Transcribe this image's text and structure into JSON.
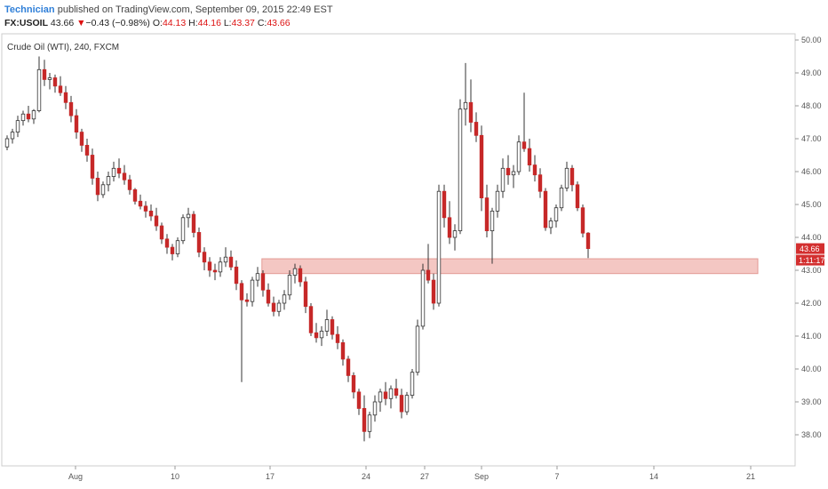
{
  "header": {
    "author": "Technician",
    "published_text": " published on TradingView.com, September 09, 2015 22:49 EST",
    "symbol": "FX:USOIL",
    "last": "43.66",
    "arrow": "▼",
    "change": "−0.43 (−0.98%)",
    "o_label": "O:",
    "o_val": "44.13",
    "h_label": "H:",
    "h_val": "44.16",
    "l_label": "L:",
    "l_val": "43.37",
    "c_label": "C:",
    "c_val": "43.66"
  },
  "colors": {
    "up": "#ffffff",
    "down": "#c62828",
    "wick": "#333333",
    "zone_fill": "#f4c7c3",
    "zone_stroke": "#e39a94",
    "price_badge": "#d32f2f",
    "axis": "#cccccc"
  },
  "chart_data": {
    "type": "candlestick",
    "title": "Crude Oil (WTI), 240, FXCM",
    "y_ticks": [
      "38.00",
      "39.00",
      "40.00",
      "41.00",
      "42.00",
      "43.00",
      "44.00",
      "45.00",
      "46.00",
      "47.00",
      "48.00",
      "49.00",
      "50.00"
    ],
    "ylim": [
      37.0,
      50.0
    ],
    "x_ticks": [
      "Aug",
      "10",
      "17",
      "24",
      "27",
      "Sep",
      "7",
      "14",
      "21"
    ],
    "last_price_label": "43.66",
    "countdown_label": "1:11:17",
    "support_zone": {
      "low": 42.9,
      "high": 43.35
    },
    "candles": [
      [
        46.75,
        47.1,
        46.65,
        47.0
      ],
      [
        47.0,
        47.3,
        46.85,
        47.2
      ],
      [
        47.2,
        47.7,
        47.05,
        47.55
      ],
      [
        47.55,
        47.85,
        47.4,
        47.75
      ],
      [
        47.75,
        48.0,
        47.5,
        47.6
      ],
      [
        47.6,
        47.9,
        47.45,
        47.85
      ],
      [
        47.85,
        49.5,
        47.8,
        49.1
      ],
      [
        49.1,
        49.4,
        48.6,
        48.8
      ],
      [
        48.8,
        49.0,
        48.5,
        48.85
      ],
      [
        48.85,
        48.95,
        48.4,
        48.6
      ],
      [
        48.6,
        48.9,
        48.3,
        48.4
      ],
      [
        48.4,
        48.6,
        47.9,
        48.1
      ],
      [
        48.1,
        48.3,
        47.5,
        47.7
      ],
      [
        47.7,
        47.9,
        47.0,
        47.2
      ],
      [
        47.2,
        47.3,
        46.6,
        46.8
      ],
      [
        46.8,
        47.0,
        46.3,
        46.5
      ],
      [
        46.5,
        46.7,
        45.6,
        45.8
      ],
      [
        45.8,
        46.0,
        45.1,
        45.3
      ],
      [
        45.3,
        45.7,
        45.2,
        45.6
      ],
      [
        45.6,
        46.0,
        45.4,
        45.85
      ],
      [
        45.85,
        46.3,
        45.7,
        46.1
      ],
      [
        46.1,
        46.4,
        45.8,
        45.95
      ],
      [
        45.95,
        46.2,
        45.6,
        45.75
      ],
      [
        45.75,
        45.9,
        45.3,
        45.45
      ],
      [
        45.45,
        45.5,
        45.0,
        45.1
      ],
      [
        45.1,
        45.3,
        44.85,
        44.95
      ],
      [
        44.95,
        45.1,
        44.6,
        44.8
      ],
      [
        44.8,
        45.0,
        44.5,
        44.65
      ],
      [
        44.65,
        44.9,
        44.2,
        44.35
      ],
      [
        44.35,
        44.45,
        43.8,
        43.95
      ],
      [
        43.95,
        44.1,
        43.5,
        43.7
      ],
      [
        43.7,
        43.8,
        43.3,
        43.5
      ],
      [
        43.5,
        44.0,
        43.4,
        43.9
      ],
      [
        43.9,
        44.7,
        43.8,
        44.6
      ],
      [
        44.6,
        44.9,
        44.3,
        44.7
      ],
      [
        44.7,
        44.8,
        44.0,
        44.15
      ],
      [
        44.15,
        44.3,
        43.4,
        43.55
      ],
      [
        43.55,
        43.7,
        43.0,
        43.25
      ],
      [
        43.25,
        43.4,
        42.8,
        43.0
      ],
      [
        43.0,
        43.2,
        42.7,
        42.95
      ],
      [
        42.95,
        43.4,
        42.8,
        43.25
      ],
      [
        43.25,
        43.7,
        43.1,
        43.4
      ],
      [
        43.4,
        43.6,
        43.0,
        43.1
      ],
      [
        43.1,
        43.3,
        42.4,
        42.6
      ],
      [
        42.6,
        42.7,
        39.6,
        42.1
      ],
      [
        42.1,
        42.3,
        41.9,
        42.05
      ],
      [
        42.05,
        42.8,
        41.9,
        42.7
      ],
      [
        42.7,
        43.1,
        42.5,
        42.9
      ],
      [
        42.9,
        43.0,
        42.2,
        42.4
      ],
      [
        42.4,
        42.6,
        41.9,
        42.0
      ],
      [
        42.0,
        42.2,
        41.6,
        41.75
      ],
      [
        41.75,
        42.1,
        41.6,
        42.0
      ],
      [
        42.0,
        42.4,
        41.8,
        42.25
      ],
      [
        42.25,
        43.0,
        42.1,
        42.85
      ],
      [
        42.85,
        43.2,
        42.6,
        43.05
      ],
      [
        43.05,
        43.15,
        42.5,
        42.65
      ],
      [
        42.65,
        42.8,
        41.7,
        41.9
      ],
      [
        41.9,
        42.0,
        41.0,
        41.1
      ],
      [
        41.1,
        41.4,
        40.8,
        40.95
      ],
      [
        40.95,
        41.3,
        40.7,
        41.15
      ],
      [
        41.15,
        41.8,
        41.0,
        41.5
      ],
      [
        41.5,
        41.6,
        40.9,
        41.05
      ],
      [
        41.05,
        41.3,
        40.6,
        40.8
      ],
      [
        40.8,
        40.9,
        40.1,
        40.3
      ],
      [
        40.3,
        40.4,
        39.6,
        39.8
      ],
      [
        39.8,
        39.9,
        39.1,
        39.3
      ],
      [
        39.3,
        39.4,
        38.6,
        38.8
      ],
      [
        38.8,
        39.2,
        37.8,
        38.1
      ],
      [
        38.1,
        38.7,
        37.9,
        38.6
      ],
      [
        38.6,
        39.2,
        38.4,
        39.0
      ],
      [
        39.0,
        39.4,
        38.7,
        39.3
      ],
      [
        39.3,
        39.6,
        38.9,
        39.1
      ],
      [
        39.1,
        39.5,
        38.8,
        39.4
      ],
      [
        39.4,
        39.7,
        39.1,
        39.2
      ],
      [
        39.2,
        39.4,
        38.5,
        38.7
      ],
      [
        38.7,
        39.3,
        38.6,
        39.2
      ],
      [
        39.2,
        40.0,
        39.1,
        39.9
      ],
      [
        39.9,
        41.5,
        39.8,
        41.3
      ],
      [
        41.3,
        43.2,
        41.2,
        43.0
      ],
      [
        43.0,
        43.8,
        42.6,
        42.7
      ],
      [
        42.7,
        42.9,
        41.8,
        42.0
      ],
      [
        42.0,
        45.6,
        41.9,
        45.4
      ],
      [
        45.4,
        45.6,
        44.3,
        44.6
      ],
      [
        44.6,
        45.1,
        43.8,
        44.0
      ],
      [
        44.0,
        44.4,
        43.6,
        44.2
      ],
      [
        44.2,
        48.2,
        44.1,
        47.9
      ],
      [
        47.9,
        49.3,
        47.4,
        48.1
      ],
      [
        48.1,
        48.8,
        47.2,
        47.5
      ],
      [
        47.5,
        47.8,
        46.9,
        47.1
      ],
      [
        47.1,
        47.4,
        44.8,
        45.2
      ],
      [
        45.2,
        45.6,
        44.0,
        44.2
      ],
      [
        44.2,
        44.9,
        43.2,
        44.8
      ],
      [
        44.8,
        45.6,
        44.6,
        45.4
      ],
      [
        45.4,
        46.4,
        45.2,
        46.1
      ],
      [
        46.1,
        46.5,
        45.6,
        45.9
      ],
      [
        45.9,
        46.2,
        45.5,
        46.0
      ],
      [
        46.0,
        47.1,
        45.9,
        46.9
      ],
      [
        46.9,
        48.4,
        46.6,
        46.7
      ],
      [
        46.7,
        47.0,
        46.0,
        46.2
      ],
      [
        46.2,
        46.5,
        45.7,
        45.9
      ],
      [
        45.9,
        46.1,
        45.2,
        45.4
      ],
      [
        45.4,
        45.5,
        44.2,
        44.3
      ],
      [
        44.3,
        44.6,
        44.1,
        44.5
      ],
      [
        44.5,
        45.0,
        44.3,
        44.9
      ],
      [
        44.9,
        45.6,
        44.8,
        45.5
      ],
      [
        45.5,
        46.3,
        45.4,
        46.1
      ],
      [
        46.1,
        46.2,
        45.4,
        45.6
      ],
      [
        45.6,
        45.7,
        44.8,
        44.9
      ],
      [
        44.9,
        45.0,
        44.0,
        44.13
      ],
      [
        44.13,
        44.16,
        43.37,
        43.66
      ]
    ]
  }
}
